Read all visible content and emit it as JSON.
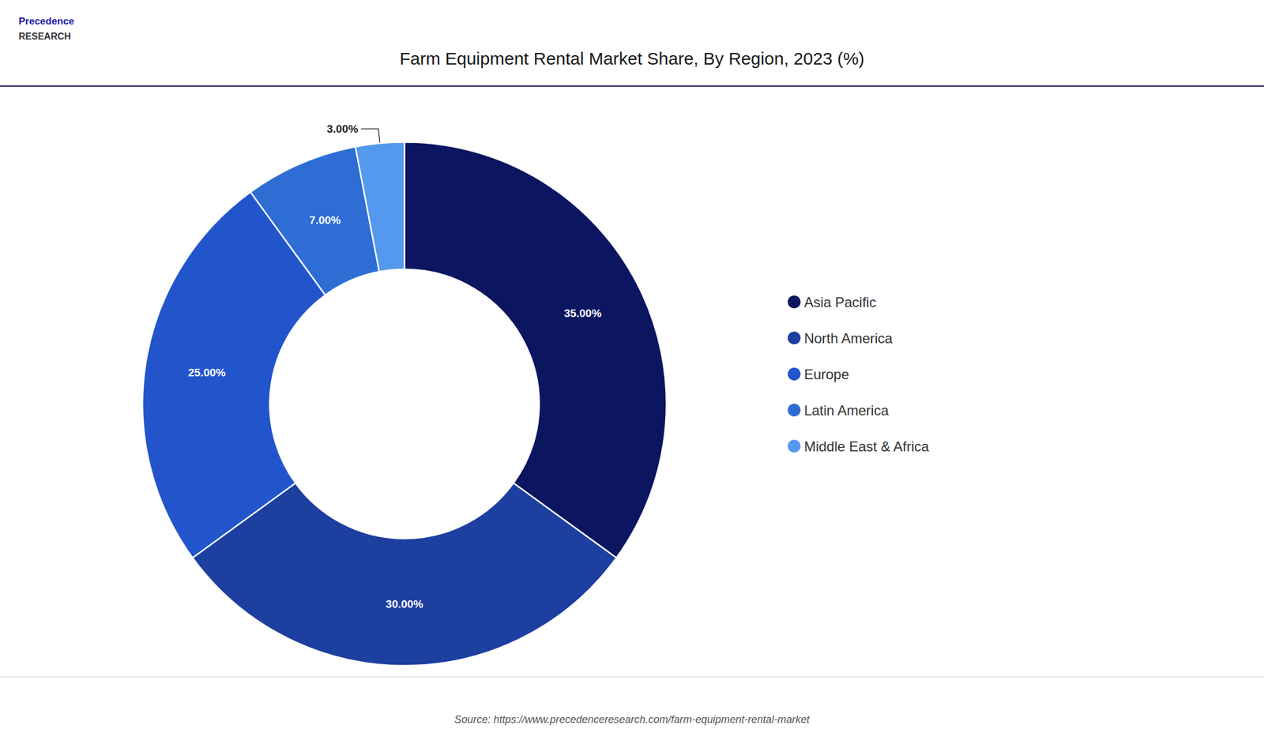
{
  "chart_data": {
    "type": "donut",
    "title": "Farm Equipment Rental Market Share, By Region, 2023 (%)",
    "categories": [
      "Asia Pacific",
      "North America",
      "Europe",
      "Latin America",
      "Middle East & Africa"
    ],
    "values": [
      35.0,
      30.0,
      25.0,
      7.0,
      3.0
    ],
    "value_labels": [
      "35.00%",
      "30.00%",
      "25.00%",
      "7.00%",
      "3.00%"
    ],
    "colors": [
      "#0b1560",
      "#1c3fa0",
      "#2255cc",
      "#2e6dd4",
      "#5599ee"
    ],
    "data_labels": true,
    "legend": "right",
    "annotations": [
      "Precedence",
      "RESEARCH",
      "Source: https://www.precedenceresearch.com/farm-equipment-rental-market"
    ]
  }
}
